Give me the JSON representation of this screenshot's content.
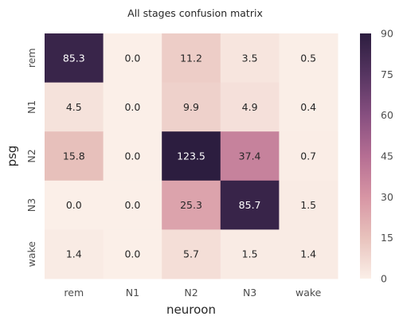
{
  "chart_data": {
    "type": "heatmap",
    "title": "All stages confusion matrix",
    "xlabel": "neuroon",
    "ylabel": "psg",
    "x_categories": [
      "rem",
      "N1",
      "N2",
      "N3",
      "wake"
    ],
    "y_categories": [
      "rem",
      "N1",
      "N2",
      "N3",
      "wake"
    ],
    "values": [
      [
        85.3,
        0.0,
        11.2,
        3.5,
        0.5
      ],
      [
        4.5,
        0.0,
        9.9,
        4.9,
        0.4
      ],
      [
        15.8,
        0.0,
        123.5,
        37.4,
        0.7
      ],
      [
        0.0,
        0.0,
        25.3,
        85.7,
        1.5
      ],
      [
        1.4,
        0.0,
        5.7,
        1.5,
        1.4
      ]
    ],
    "value_labels": [
      [
        "85.3",
        "0.0",
        "11.2",
        "3.5",
        "0.5"
      ],
      [
        "4.5",
        "0.0",
        "9.9",
        "4.9",
        "0.4"
      ],
      [
        "15.8",
        "0.0",
        "123.5",
        "37.4",
        "0.7"
      ],
      [
        "0.0",
        "0.0",
        "25.3",
        "85.7",
        "1.5"
      ],
      [
        "1.4",
        "0.0",
        "5.7",
        "1.5",
        "1.4"
      ]
    ],
    "color_range": [
      0,
      90
    ],
    "colorbar_ticks": [
      "0",
      "15",
      "30",
      "45",
      "60",
      "75",
      "90"
    ],
    "colormap": [
      "#fbefe8",
      "#e8c2bc",
      "#d795a4",
      "#b56e93",
      "#874f80",
      "#563561",
      "#2c1d3f"
    ],
    "light_text_color": "#ffffff",
    "dark_text_color": "#262626"
  }
}
